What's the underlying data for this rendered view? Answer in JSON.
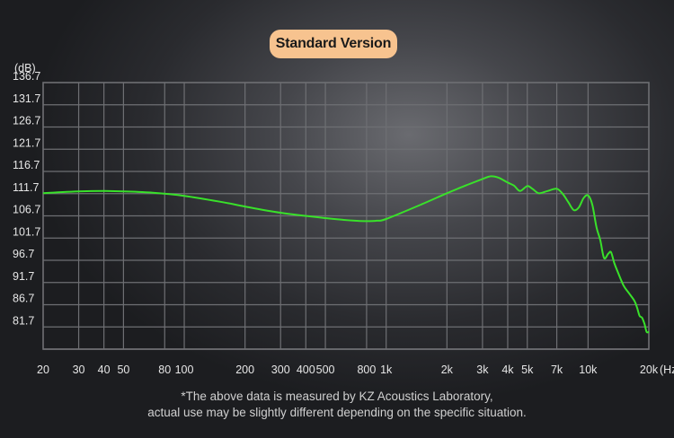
{
  "badge": {
    "label": "Standard Version"
  },
  "footnote": {
    "line1": "*The above data is measured by KZ Acoustics Laboratory,",
    "line2": "actual use may be slightly different depending on the specific situation."
  },
  "colors": {
    "curve": "#39e12a",
    "grid": "#6e6f73",
    "badge": "#f7c38f"
  },
  "chart_data": {
    "type": "line",
    "title": "Standard Version",
    "y_unit_label": "(dB)",
    "x_unit_label": "(Hz)",
    "x_scale": "log",
    "xlim": [
      20,
      20000
    ],
    "ylim": [
      76.7,
      136.7
    ],
    "grid": true,
    "y_ticks": [
      136.7,
      131.7,
      126.7,
      121.7,
      116.7,
      111.7,
      106.7,
      101.7,
      96.7,
      91.7,
      86.7,
      81.7
    ],
    "y_tick_labels": [
      "136.7",
      "131.7",
      "126.7",
      "121.7",
      "116.7",
      "111.7",
      "106.7",
      "101.7",
      "96.7",
      "91.7",
      "86.7",
      "81.7"
    ],
    "x_ticks": [
      20,
      30,
      40,
      50,
      80,
      100,
      200,
      300,
      400,
      500,
      800,
      1000,
      2000,
      3000,
      4000,
      5000,
      7000,
      10000,
      20000
    ],
    "x_tick_labels": [
      "20",
      "30",
      "40",
      "50",
      "80",
      "100",
      "200",
      "300",
      "400",
      "500",
      "800",
      "1k",
      "2k",
      "3k",
      "4k",
      "5k",
      "7k",
      "10k",
      "20k"
    ],
    "series": [
      {
        "x": [
          20,
          30,
          40,
          50,
          70,
          100,
          150,
          200,
          300,
          500,
          700,
          800,
          900,
          1000,
          1500,
          2000,
          2500,
          3000,
          3300,
          3600,
          4000,
          4300,
          4600,
          5000,
          5300,
          5700,
          6300,
          7000,
          7500,
          8000,
          8500,
          9000,
          9500,
          10000,
          10500,
          11000,
          11500,
          12000,
          12600,
          13000,
          13500,
          14000,
          15000,
          16000,
          17000,
          17500,
          18000,
          18500,
          19000,
          19500,
          20000
        ],
        "y": [
          111.8,
          112.2,
          112.3,
          112.2,
          111.9,
          111.2,
          109.9,
          108.8,
          107.4,
          106.2,
          105.6,
          105.5,
          105.6,
          106.0,
          109.3,
          111.8,
          113.6,
          115.0,
          115.6,
          115.3,
          114.2,
          113.5,
          112.3,
          113.4,
          112.8,
          111.8,
          112.3,
          112.8,
          111.6,
          109.7,
          108.0,
          108.6,
          110.7,
          111.3,
          109.2,
          104.2,
          101.2,
          97.2,
          98.2,
          98.5,
          96.0,
          94.2,
          91.0,
          89.2,
          87.5,
          86.0,
          84.2,
          83.8,
          82.5,
          80.6,
          80.6
        ]
      }
    ]
  }
}
